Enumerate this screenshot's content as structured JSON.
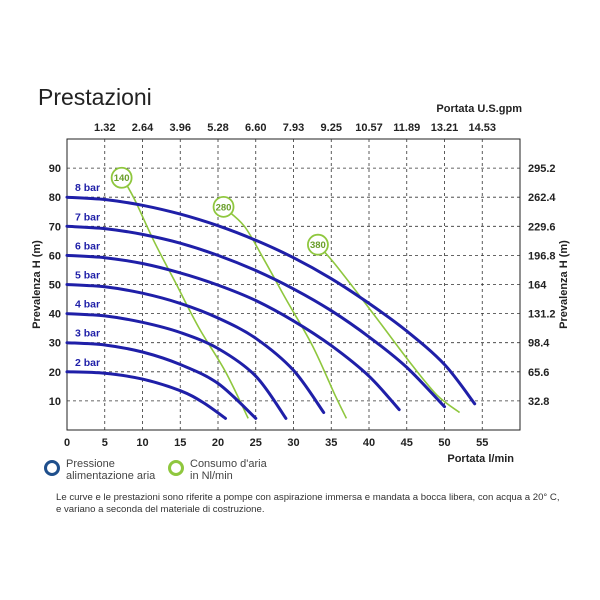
{
  "title": "Prestazioni",
  "legend": [
    {
      "label_line1": "Pressione",
      "label_line2": "alimentazione aria",
      "color": "#1f4f8c"
    },
    {
      "label_line1": "Consumo d'aria",
      "label_line2": "in Nl/min",
      "color": "#8fc73e"
    }
  ],
  "footnote_line1": "Le curve e le prestazioni sono riferite a pompe con aspirazione immersa e mandata a bocca libera, con acqua a 20° C,",
  "footnote_line2": "e variano a seconda del materiale di costruzione.",
  "colors": {
    "pressure_curves": "#1f1fa8",
    "air_curves": "#8fc73e",
    "grid": "#333333",
    "axis_text": "#222222"
  },
  "chart_data": {
    "type": "line",
    "xlabel": "Portata  l/min",
    "ylabel": "Prevalenza H (m)",
    "x2label": "Portata U.S.gpm",
    "y2label": "Prevalenza  H (m)",
    "xlim": [
      0,
      60
    ],
    "ylim": [
      0,
      100
    ],
    "x_ticks": [
      0,
      5,
      10,
      15,
      20,
      25,
      30,
      35,
      40,
      45,
      50,
      55
    ],
    "y_ticks": [
      10,
      20,
      30,
      40,
      50,
      60,
      70,
      80,
      90
    ],
    "x2_ticks": [
      "1.32",
      "2.64",
      "3.96",
      "5.28",
      "6.60",
      "7.93",
      "9.25",
      "10.57",
      "11.89",
      "13.21",
      "14.53"
    ],
    "y2_ticks": [
      "32.8",
      "65.6",
      "98.4",
      "131.2",
      "164",
      "196.8",
      "229.6",
      "262.4",
      "295.2"
    ],
    "grid": true,
    "series": [
      {
        "name": "2 bar",
        "x": [
          0,
          5,
          10,
          15,
          18,
          21
        ],
        "y": [
          20,
          19.5,
          17.5,
          13.5,
          9.5,
          4
        ]
      },
      {
        "name": "3 bar",
        "x": [
          0,
          5,
          10,
          15,
          20,
          25
        ],
        "y": [
          30,
          29.2,
          26.8,
          22.5,
          16,
          4
        ]
      },
      {
        "name": "4 bar",
        "x": [
          0,
          5,
          10,
          15,
          20,
          25,
          29
        ],
        "y": [
          40,
          39.2,
          37,
          33.5,
          28,
          18.5,
          4
        ]
      },
      {
        "name": "5 bar",
        "x": [
          0,
          5,
          10,
          15,
          20,
          25,
          30,
          34
        ],
        "y": [
          50,
          49.2,
          47,
          43.5,
          38.5,
          31.5,
          20.5,
          6
        ]
      },
      {
        "name": "6 bar",
        "x": [
          0,
          5,
          10,
          15,
          20,
          25,
          30,
          35,
          40,
          44
        ],
        "y": [
          60,
          59.2,
          57.2,
          54,
          49.8,
          44.5,
          37.5,
          29,
          18.5,
          7
        ]
      },
      {
        "name": "7 bar",
        "x": [
          0,
          5,
          10,
          15,
          20,
          25,
          30,
          35,
          40,
          45,
          50
        ],
        "y": [
          70,
          69.2,
          67.2,
          64.2,
          60,
          54.8,
          48.5,
          41,
          32,
          21.5,
          8
        ]
      },
      {
        "name": "8 bar",
        "x": [
          0,
          5,
          10,
          15,
          20,
          25,
          30,
          35,
          40,
          45,
          50,
          54
        ],
        "y": [
          80,
          79.2,
          77.2,
          74.2,
          70.2,
          65.2,
          59.2,
          52,
          43.5,
          34,
          22.5,
          9
        ]
      }
    ],
    "air_consumption": [
      {
        "label": "140",
        "x": [
          7.5,
          9,
          11.5,
          14.5,
          17.5,
          21,
          24
        ],
        "y": [
          86,
          79,
          65,
          50,
          35,
          20,
          4
        ]
      },
      {
        "label": "280",
        "x": [
          21,
          23.5,
          26,
          29,
          32.5,
          35.5,
          37
        ],
        "y": [
          76,
          70,
          59,
          45,
          29,
          12,
          4
        ]
      },
      {
        "label": "380",
        "x": [
          33.5,
          35.5,
          38.5,
          42,
          45.5,
          49,
          52
        ],
        "y": [
          63,
          57,
          47,
          35,
          23,
          12,
          6
        ]
      }
    ]
  }
}
